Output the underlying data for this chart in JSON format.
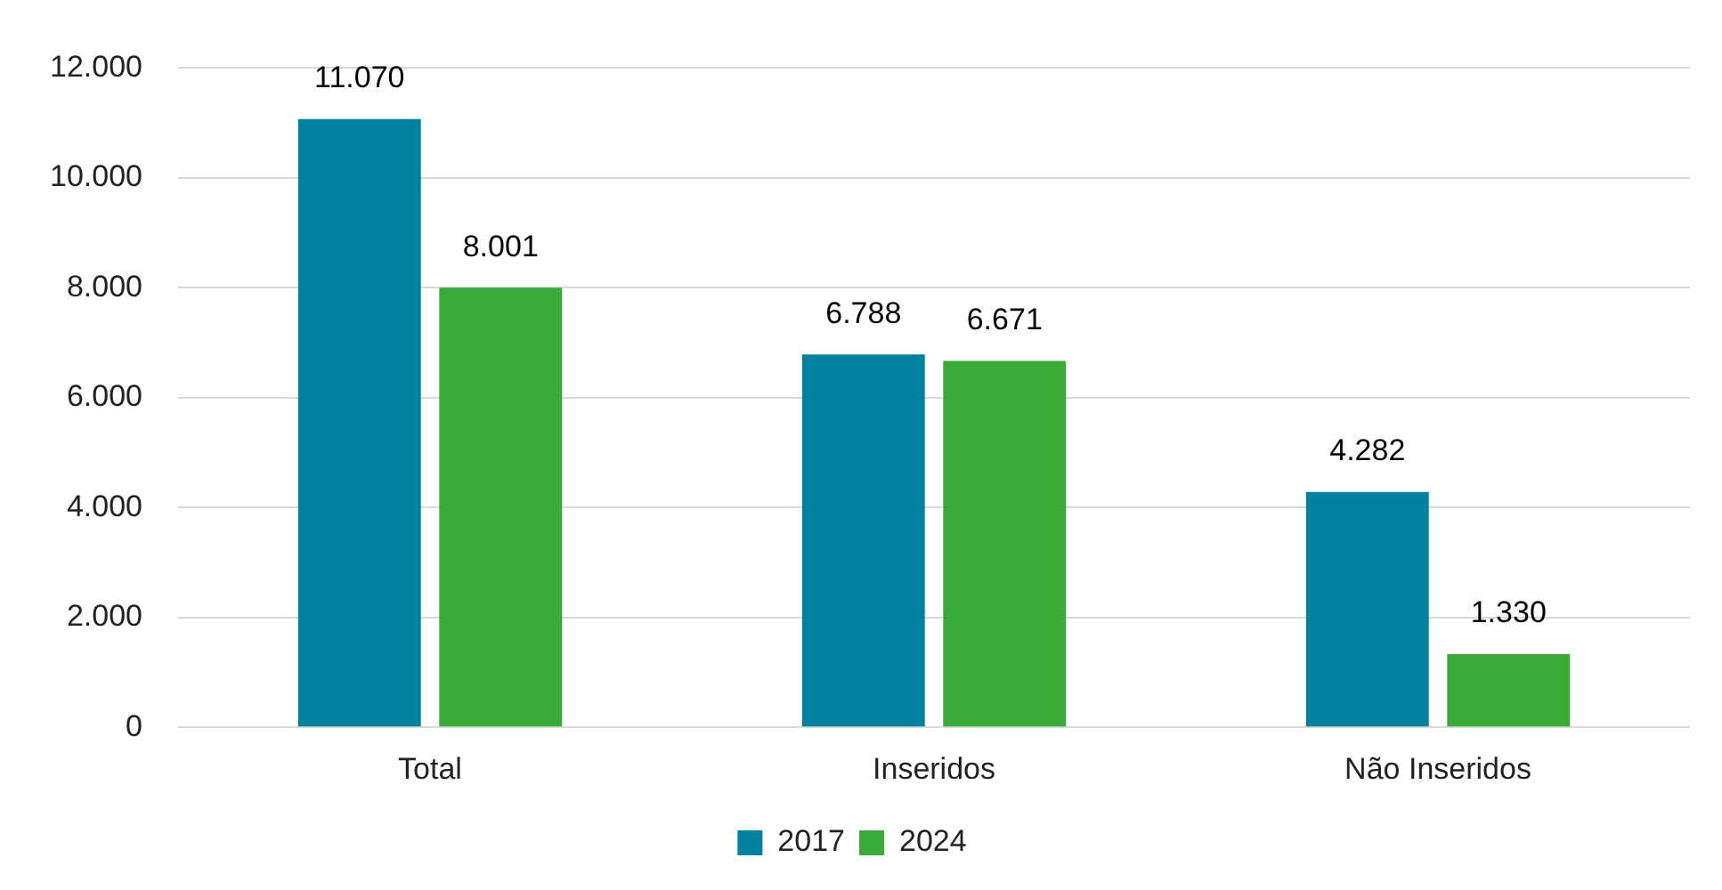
{
  "chart_data": {
    "type": "bar",
    "categories": [
      "Total",
      "Inseridos",
      "Não Inseridos"
    ],
    "series": [
      {
        "name": "2017",
        "color": "#00829f",
        "values": [
          11070,
          6788,
          4282
        ],
        "value_labels": [
          "11.070",
          "6.788",
          "4.282"
        ]
      },
      {
        "name": "2024",
        "color": "#3aaa3a",
        "values": [
          8001,
          6671,
          1330
        ],
        "value_labels": [
          "8.001",
          "6.671",
          "1.330"
        ]
      }
    ],
    "ylim": [
      0,
      12000
    ],
    "yticks": [
      {
        "value": 0,
        "label": "0"
      },
      {
        "value": 2000,
        "label": "2.000"
      },
      {
        "value": 4000,
        "label": "4.000"
      },
      {
        "value": 6000,
        "label": "6.000"
      },
      {
        "value": 8000,
        "label": "8.000"
      },
      {
        "value": 10000,
        "label": "10.000"
      },
      {
        "value": 12000,
        "label": "12.000"
      }
    ],
    "grid": "y",
    "legend": "bottom"
  }
}
